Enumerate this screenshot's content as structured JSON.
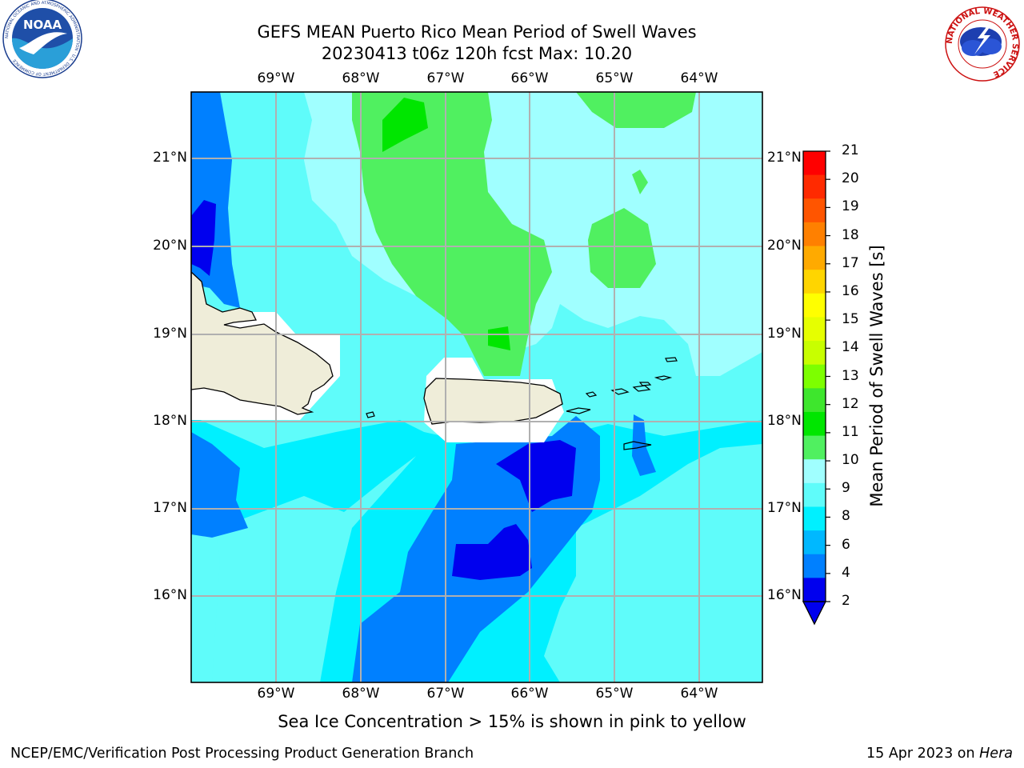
{
  "header": {
    "title_line1": "GEFS MEAN Puerto Rico Mean Period of Swell Waves",
    "title_line2": "20230413 t06z 120h fcst   Max: 10.20"
  },
  "logos": {
    "left": "NOAA",
    "left_ring_text": "NATIONAL OCEANIC AND ATMOSPHERIC ADMINISTRATION · U.S. DEPARTMENT OF COMMERCE",
    "right_ring_text": "NATIONAL WEATHER SERVICE"
  },
  "map": {
    "lon_ticks": [
      "69°W",
      "68°W",
      "67°W",
      "66°W",
      "65°W",
      "64°W"
    ],
    "lat_ticks": [
      "21°N",
      "20°N",
      "19°N",
      "18°N",
      "17°N",
      "16°N"
    ]
  },
  "colorbar": {
    "label": "Mean Period of Swell Waves [s]",
    "ticks": [
      "21",
      "20",
      "19",
      "18",
      "17",
      "16",
      "15",
      "14",
      "13",
      "12",
      "11",
      "10",
      "9",
      "8",
      "6",
      "4",
      "2"
    ],
    "colors": [
      "#ff0000",
      "#ff2a00",
      "#ff5500",
      "#ff8000",
      "#ffaa00",
      "#ffd500",
      "#ffff00",
      "#e6ff00",
      "#c8ff00",
      "#7dff00",
      "#3ee62d",
      "#00e600",
      "#50f060",
      "#a0ffff",
      "#5ffcfa",
      "#00f0ff",
      "#00b8ff",
      "#0080ff",
      "#0000ee"
    ],
    "extend_color": "#0000ee"
  },
  "caption": "Sea Ice Concentration > 15% is shown in pink to yellow",
  "footer": {
    "left": "NCEP/EMC/Verification Post Processing Product Generation Branch",
    "date": "15 Apr 2023 on ",
    "machine": "Hera"
  }
}
